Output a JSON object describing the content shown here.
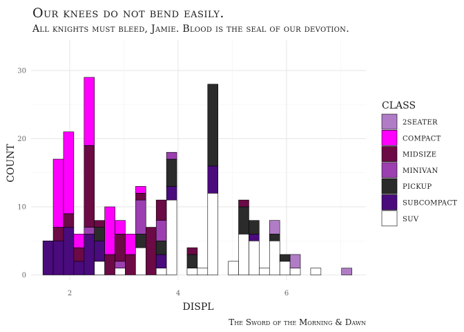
{
  "chart_data": {
    "type": "bar",
    "title": "Our knees do not bend easily.",
    "subtitle": "All knights must bleed, Jamie. Blood is the seal of our devotion.",
    "caption": "The Sword of the Morning & Dawn",
    "xlabel": "DISPL",
    "ylabel": "COUNT",
    "xlim": [
      1.6,
      7.2
    ],
    "ylim": [
      0,
      33
    ],
    "x_ticks": [
      2,
      4,
      6
    ],
    "y_ticks": [
      0,
      10,
      20,
      30
    ],
    "bin_width": 0.19,
    "stacked": true,
    "grid": true,
    "legend_position": "right",
    "legend_title": "CLASS",
    "series": [
      {
        "name": "2SEATER",
        "color": "#b07cc6"
      },
      {
        "name": "COMPACT",
        "color": "#ff00ff"
      },
      {
        "name": "MIDSIZE",
        "color": "#6b0a45"
      },
      {
        "name": "MINIVAN",
        "color": "#9c3fb0"
      },
      {
        "name": "PICKUP",
        "color": "#2b2b2b"
      },
      {
        "name": "SUBCOMPACT",
        "color": "#4a0b7d"
      },
      {
        "name": "SUV",
        "color": "#ffffff"
      }
    ],
    "bins": [
      {
        "x": 1.6,
        "counts": {
          "SUBCOMPACT": 5
        }
      },
      {
        "x": 1.79,
        "counts": {
          "SUBCOMPACT": 5,
          "MIDSIZE": 2,
          "COMPACT": 10
        }
      },
      {
        "x": 1.98,
        "counts": {
          "SUBCOMPACT": 7,
          "MIDSIZE": 2,
          "COMPACT": 12
        }
      },
      {
        "x": 2.17,
        "counts": {
          "SUBCOMPACT": 2,
          "MIDSIZE": 2,
          "COMPACT": 2
        }
      },
      {
        "x": 2.36,
        "counts": {
          "SUBCOMPACT": 6,
          "MINIVAN": 1,
          "MIDSIZE": 12,
          "COMPACT": 10
        }
      },
      {
        "x": 2.55,
        "counts": {
          "SUV": 2,
          "SUBCOMPACT": 3,
          "MIDSIZE": 1,
          "PICKUP": 2
        }
      },
      {
        "x": 2.74,
        "counts": {
          "MIDSIZE": 3,
          "COMPACT": 7
        }
      },
      {
        "x": 2.93,
        "counts": {
          "SUV": 1,
          "MINIVAN": 1,
          "MIDSIZE": 4,
          "COMPACT": 2
        }
      },
      {
        "x": 3.12,
        "counts": {
          "MIDSIZE": 3,
          "COMPACT": 3
        }
      },
      {
        "x": 3.31,
        "counts": {
          "SUV": 4,
          "PICKUP": 2,
          "MINIVAN": 5,
          "MIDSIZE": 1,
          "COMPACT": 1
        }
      },
      {
        "x": 3.5,
        "counts": {
          "MIDSIZE": 7
        }
      },
      {
        "x": 3.69,
        "counts": {
          "SUV": 1,
          "SUBCOMPACT": 2,
          "PICKUP": 2,
          "MINIVAN": 3,
          "MIDSIZE": 3
        }
      },
      {
        "x": 3.88,
        "counts": {
          "SUV": 11,
          "SUBCOMPACT": 2,
          "PICKUP": 4,
          "MINIVAN": 1
        }
      },
      {
        "x": 4.07,
        "counts": {}
      },
      {
        "x": 4.26,
        "counts": {
          "SUV": 1,
          "PICKUP": 2,
          "MIDSIZE": 1
        }
      },
      {
        "x": 4.45,
        "counts": {
          "SUV": 1
        }
      },
      {
        "x": 4.64,
        "counts": {
          "SUV": 12,
          "SUBCOMPACT": 4,
          "PICKUP": 12
        }
      },
      {
        "x": 4.83,
        "counts": {}
      },
      {
        "x": 5.02,
        "counts": {
          "SUV": 2
        }
      },
      {
        "x": 5.21,
        "counts": {
          "SUV": 6,
          "PICKUP": 4,
          "MIDSIZE": 1
        }
      },
      {
        "x": 5.4,
        "counts": {
          "SUV": 5,
          "SUBCOMPACT": 1,
          "PICKUP": 2
        }
      },
      {
        "x": 5.59,
        "counts": {
          "SUV": 1
        }
      },
      {
        "x": 5.78,
        "counts": {
          "SUV": 5,
          "PICKUP": 1,
          "2SEATER": 2
        }
      },
      {
        "x": 5.97,
        "counts": {
          "SUV": 2,
          "PICKUP": 1
        }
      },
      {
        "x": 6.16,
        "counts": {
          "SUV": 1,
          "2SEATER": 2
        }
      },
      {
        "x": 6.35,
        "counts": {}
      },
      {
        "x": 6.54,
        "counts": {
          "SUV": 1
        }
      },
      {
        "x": 6.73,
        "counts": {}
      },
      {
        "x": 6.92,
        "counts": {}
      },
      {
        "x": 7.11,
        "counts": {
          "2SEATER": 1
        }
      }
    ]
  }
}
